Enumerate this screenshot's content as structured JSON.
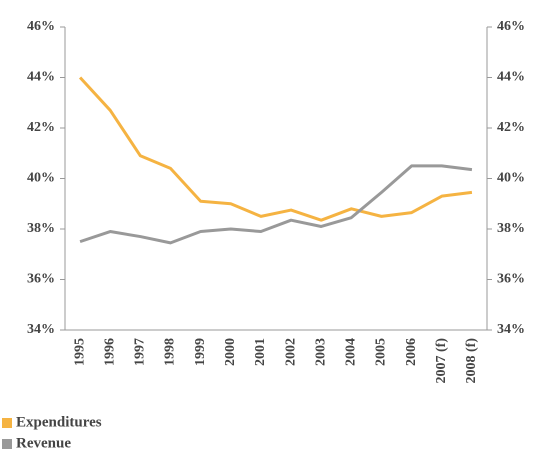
{
  "chart_data": {
    "type": "line",
    "categories": [
      "1995",
      "1996",
      "1997",
      "1998",
      "1999",
      "2000",
      "2001",
      "2002",
      "2003",
      "2004",
      "2005",
      "2006",
      "2007 (f)",
      "2008 (f)"
    ],
    "series": [
      {
        "name": "Expenditures",
        "color": "#f5b342",
        "values": [
          44.0,
          42.7,
          40.9,
          40.4,
          39.1,
          39.0,
          38.5,
          38.75,
          38.35,
          38.8,
          38.5,
          38.65,
          39.3,
          39.45
        ]
      },
      {
        "name": "Revenue",
        "color": "#999999",
        "values": [
          37.5,
          37.9,
          37.7,
          37.45,
          37.9,
          38.0,
          37.9,
          38.35,
          38.1,
          38.45,
          39.45,
          40.5,
          40.5,
          40.35
        ]
      }
    ],
    "ylim": [
      34,
      46
    ],
    "yticks": [
      {
        "value": 34,
        "label": "34%"
      },
      {
        "value": 36,
        "label": "36%"
      },
      {
        "value": 38,
        "label": "38%"
      },
      {
        "value": 40,
        "label": "40%"
      },
      {
        "value": 42,
        "label": "42%"
      },
      {
        "value": 44,
        "label": "44%"
      },
      {
        "value": 46,
        "label": "46%"
      }
    ],
    "y2lim": [
      34,
      46
    ],
    "y2ticks": [
      {
        "value": 34,
        "label": "34%"
      },
      {
        "value": 36,
        "label": "36%"
      },
      {
        "value": 38,
        "label": "38%"
      },
      {
        "value": 40,
        "label": "40%"
      },
      {
        "value": 42,
        "label": "42%"
      },
      {
        "value": 44,
        "label": "44%"
      },
      {
        "value": 46,
        "label": "46%"
      }
    ]
  }
}
